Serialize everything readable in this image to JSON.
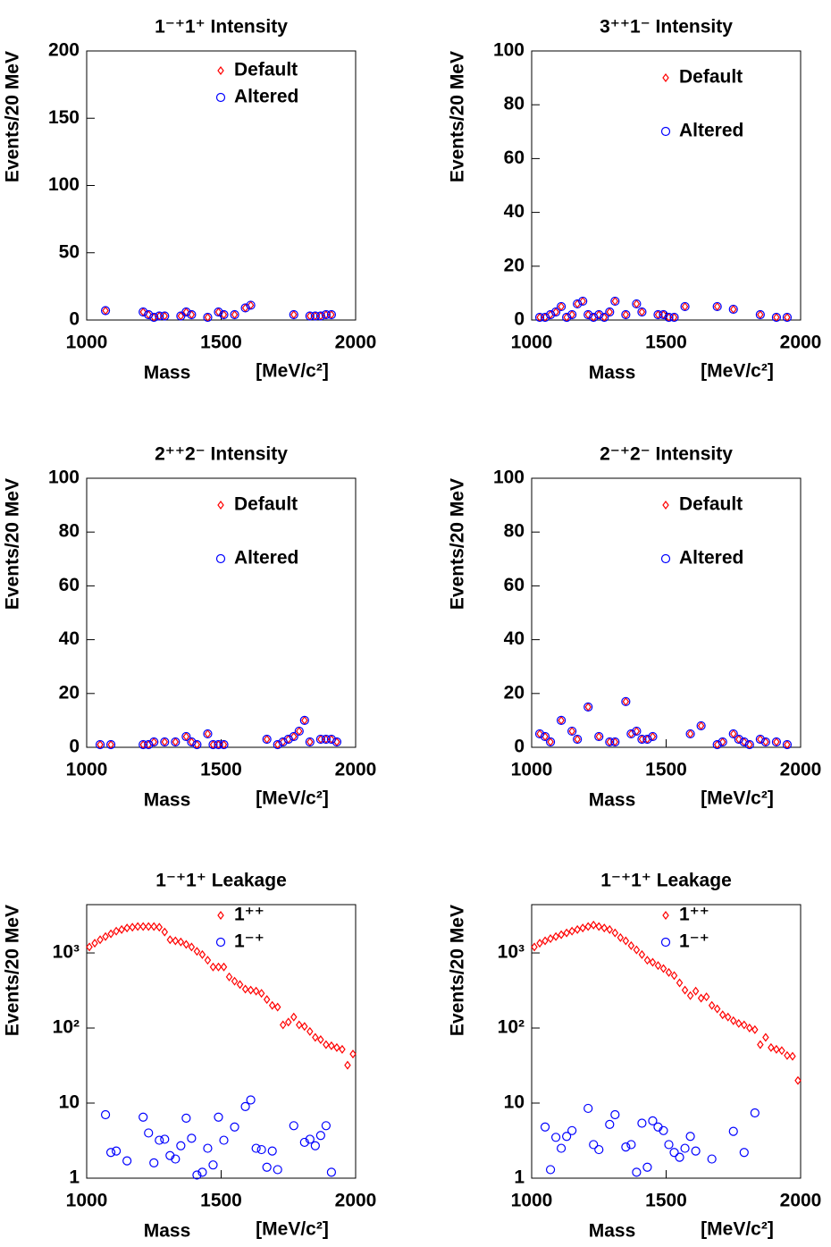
{
  "chart_data": [
    {
      "type": "scatter",
      "title": "1⁻⁺1⁺ Intensity",
      "x_label": "Mass",
      "x_unit": "[MeV/c²]",
      "y_label": "Events/20 MeV",
      "xlim": [
        1000,
        2000
      ],
      "xticks": [
        1000,
        1500,
        2000
      ],
      "ylim": [
        0,
        200
      ],
      "yticks": [
        0,
        50,
        100,
        150,
        200
      ],
      "log_y": false,
      "series": [
        {
          "name": "Default",
          "color": "#ff0000",
          "marker": "diamond",
          "x": [
            1070,
            1210,
            1230,
            1250,
            1270,
            1290,
            1350,
            1370,
            1390,
            1450,
            1490,
            1510,
            1550,
            1590,
            1610,
            1770,
            1830,
            1850,
            1870,
            1890,
            1910
          ],
          "values": [
            7,
            6,
            4,
            2,
            3,
            3,
            3,
            6,
            4,
            2,
            6,
            4,
            4,
            9,
            11,
            4,
            3,
            3,
            3,
            4,
            4
          ]
        },
        {
          "name": "Altered",
          "color": "#0000ff",
          "marker": "circle",
          "x": [
            1070,
            1210,
            1230,
            1250,
            1270,
            1290,
            1350,
            1370,
            1390,
            1450,
            1490,
            1510,
            1550,
            1590,
            1610,
            1770,
            1830,
            1850,
            1870,
            1890,
            1910
          ],
          "values": [
            7,
            6,
            4,
            2,
            3,
            3,
            3,
            6,
            4,
            2,
            6,
            4,
            4,
            9,
            11,
            4,
            3,
            3,
            3,
            4,
            4
          ]
        }
      ]
    },
    {
      "type": "scatter",
      "title": "3⁺⁺1⁻ Intensity",
      "x_label": "Mass",
      "x_unit": "[MeV/c²]",
      "y_label": "Events/20 MeV",
      "xlim": [
        1000,
        2000
      ],
      "xticks": [
        1000,
        1500,
        2000
      ],
      "ylim": [
        0,
        100
      ],
      "yticks": [
        0,
        20,
        40,
        60,
        80,
        100
      ],
      "log_y": false,
      "series": [
        {
          "name": "Default",
          "color": "#ff0000",
          "marker": "diamond",
          "x": [
            1030,
            1050,
            1070,
            1090,
            1110,
            1130,
            1150,
            1170,
            1190,
            1210,
            1230,
            1250,
            1270,
            1290,
            1310,
            1350,
            1390,
            1410,
            1470,
            1490,
            1510,
            1530,
            1570,
            1690,
            1750,
            1850,
            1910,
            1950
          ],
          "values": [
            1,
            1,
            2,
            3,
            5,
            1,
            2,
            6,
            7,
            2,
            1,
            2,
            1,
            3,
            7,
            2,
            6,
            3,
            2,
            2,
            1,
            1,
            5,
            5,
            4,
            2,
            1,
            1
          ]
        },
        {
          "name": "Altered",
          "color": "#0000ff",
          "marker": "circle",
          "x": [
            1030,
            1050,
            1070,
            1090,
            1110,
            1130,
            1150,
            1170,
            1190,
            1210,
            1230,
            1250,
            1270,
            1290,
            1310,
            1350,
            1390,
            1410,
            1470,
            1490,
            1510,
            1530,
            1570,
            1690,
            1750,
            1850,
            1910,
            1950
          ],
          "values": [
            1,
            1,
            2,
            3,
            5,
            1,
            2,
            6,
            7,
            2,
            1,
            2,
            1,
            3,
            7,
            2,
            6,
            3,
            2,
            2,
            1,
            1,
            5,
            5,
            4,
            2,
            1,
            1
          ]
        }
      ]
    },
    {
      "type": "scatter",
      "title": "2⁺⁺2⁻ Intensity",
      "x_label": "Mass",
      "x_unit": "[MeV/c²]",
      "y_label": "Events/20 MeV",
      "xlim": [
        1000,
        2000
      ],
      "xticks": [
        1000,
        1500,
        2000
      ],
      "ylim": [
        0,
        100
      ],
      "yticks": [
        0,
        20,
        40,
        60,
        80,
        100
      ],
      "log_y": false,
      "series": [
        {
          "name": "Default",
          "color": "#ff0000",
          "marker": "diamond",
          "x": [
            1050,
            1090,
            1210,
            1230,
            1250,
            1290,
            1330,
            1370,
            1390,
            1410,
            1450,
            1470,
            1490,
            1510,
            1670,
            1710,
            1730,
            1750,
            1770,
            1790,
            1810,
            1830,
            1870,
            1890,
            1910,
            1930
          ],
          "values": [
            1,
            1,
            1,
            1,
            2,
            2,
            2,
            4,
            2,
            1,
            5,
            1,
            1,
            1,
            3,
            1,
            2,
            3,
            4,
            6,
            10,
            2,
            3,
            3,
            3,
            2
          ]
        },
        {
          "name": "Altered",
          "color": "#0000ff",
          "marker": "circle",
          "x": [
            1050,
            1090,
            1210,
            1230,
            1250,
            1290,
            1330,
            1370,
            1390,
            1410,
            1450,
            1470,
            1490,
            1510,
            1670,
            1710,
            1730,
            1750,
            1770,
            1790,
            1810,
            1830,
            1870,
            1890,
            1910,
            1930
          ],
          "values": [
            1,
            1,
            1,
            1,
            2,
            2,
            2,
            4,
            2,
            1,
            5,
            1,
            1,
            1,
            3,
            1,
            2,
            3,
            4,
            6,
            10,
            2,
            3,
            3,
            3,
            2
          ]
        }
      ]
    },
    {
      "type": "scatter",
      "title": "2⁻⁺2⁻ Intensity",
      "x_label": "Mass",
      "x_unit": "[MeV/c²]",
      "y_label": "Events/20 MeV",
      "xlim": [
        1000,
        2000
      ],
      "xticks": [
        1000,
        1500,
        2000
      ],
      "ylim": [
        0,
        100
      ],
      "yticks": [
        0,
        20,
        40,
        60,
        80,
        100
      ],
      "log_y": false,
      "series": [
        {
          "name": "Default",
          "color": "#ff0000",
          "marker": "diamond",
          "x": [
            1030,
            1050,
            1070,
            1110,
            1150,
            1170,
            1210,
            1250,
            1290,
            1310,
            1350,
            1370,
            1390,
            1410,
            1430,
            1450,
            1590,
            1630,
            1690,
            1710,
            1750,
            1770,
            1790,
            1810,
            1850,
            1870,
            1910,
            1950
          ],
          "values": [
            5,
            4,
            2,
            10,
            6,
            3,
            15,
            4,
            2,
            2,
            17,
            5,
            6,
            3,
            3,
            4,
            5,
            8,
            1,
            2,
            5,
            3,
            2,
            1,
            3,
            2,
            2,
            1
          ]
        },
        {
          "name": "Altered",
          "color": "#0000ff",
          "marker": "circle",
          "x": [
            1030,
            1050,
            1070,
            1110,
            1150,
            1170,
            1210,
            1250,
            1290,
            1310,
            1350,
            1370,
            1390,
            1410,
            1430,
            1450,
            1590,
            1630,
            1690,
            1710,
            1750,
            1770,
            1790,
            1810,
            1850,
            1870,
            1910,
            1950
          ],
          "values": [
            5,
            4,
            2,
            10,
            6,
            3,
            15,
            4,
            2,
            2,
            17,
            5,
            6,
            3,
            3,
            4,
            5,
            8,
            1,
            2,
            5,
            3,
            2,
            1,
            3,
            2,
            2,
            1
          ]
        }
      ]
    },
    {
      "type": "scatter",
      "title": "1⁻⁺1⁺ Leakage",
      "x_label": "Mass",
      "x_unit": "[MeV/c²]",
      "y_label": "Events/20 MeV",
      "xlim": [
        1000,
        2000
      ],
      "xticks": [
        1000,
        1500,
        2000
      ],
      "ylim": [
        1,
        4400
      ],
      "yticks": [
        1,
        10,
        {
          "value": 100,
          "label": "10²"
        },
        {
          "value": 1000,
          "label": "10³"
        }
      ],
      "log_y": true,
      "series": [
        {
          "name": "1⁺⁺",
          "color": "#ff0000",
          "marker": "diamond",
          "x": [
            1010,
            1030,
            1050,
            1070,
            1090,
            1110,
            1130,
            1150,
            1170,
            1190,
            1210,
            1230,
            1250,
            1270,
            1290,
            1310,
            1330,
            1350,
            1370,
            1390,
            1410,
            1430,
            1450,
            1470,
            1490,
            1510,
            1530,
            1550,
            1570,
            1590,
            1610,
            1630,
            1650,
            1670,
            1690,
            1710,
            1730,
            1750,
            1770,
            1790,
            1810,
            1830,
            1850,
            1870,
            1890,
            1910,
            1930,
            1950,
            1970,
            1990
          ],
          "values": [
            1200,
            1350,
            1500,
            1650,
            1800,
            1950,
            2050,
            2150,
            2200,
            2250,
            2250,
            2250,
            2250,
            2200,
            1900,
            1500,
            1450,
            1400,
            1300,
            1200,
            1050,
            950,
            800,
            650,
            650,
            650,
            480,
            420,
            380,
            330,
            320,
            310,
            290,
            240,
            200,
            190,
            110,
            120,
            140,
            110,
            105,
            90,
            75,
            70,
            60,
            58,
            55,
            52,
            32,
            45
          ]
        },
        {
          "name": "1⁻⁺",
          "color": "#0000ff",
          "marker": "circle",
          "x": [
            1070,
            1090,
            1110,
            1150,
            1210,
            1230,
            1250,
            1270,
            1290,
            1310,
            1330,
            1350,
            1370,
            1390,
            1410,
            1430,
            1450,
            1470,
            1490,
            1510,
            1550,
            1590,
            1610,
            1630,
            1650,
            1670,
            1690,
            1710,
            1770,
            1810,
            1830,
            1850,
            1870,
            1890,
            1910
          ],
          "values": [
            7,
            2.2,
            2.3,
            1.7,
            6.5,
            4,
            1.6,
            3.2,
            3.3,
            2,
            1.8,
            2.7,
            6.3,
            3.4,
            1.1,
            1.2,
            2.5,
            1.5,
            6.5,
            3.2,
            4.8,
            9,
            11,
            2.5,
            2.4,
            1.4,
            2.3,
            1.3,
            5,
            3,
            3.3,
            2.7,
            3.7,
            5,
            1.2
          ]
        }
      ]
    },
    {
      "type": "scatter",
      "title": "1⁻⁺1⁺ Leakage",
      "x_label": "Mass",
      "x_unit": "[MeV/c²]",
      "y_label": "Events/20 MeV",
      "xlim": [
        1000,
        2000
      ],
      "xticks": [
        1000,
        1500,
        2000
      ],
      "ylim": [
        1,
        4400
      ],
      "yticks": [
        1,
        10,
        {
          "value": 100,
          "label": "10²"
        },
        {
          "value": 1000,
          "label": "10³"
        }
      ],
      "log_y": true,
      "series": [
        {
          "name": "1⁺⁺",
          "color": "#ff0000",
          "marker": "diamond",
          "x": [
            1010,
            1030,
            1050,
            1070,
            1090,
            1110,
            1130,
            1150,
            1170,
            1190,
            1210,
            1230,
            1250,
            1270,
            1290,
            1310,
            1330,
            1350,
            1370,
            1390,
            1410,
            1430,
            1450,
            1470,
            1490,
            1510,
            1530,
            1550,
            1570,
            1590,
            1610,
            1630,
            1650,
            1670,
            1690,
            1710,
            1730,
            1750,
            1770,
            1790,
            1810,
            1830,
            1850,
            1870,
            1890,
            1910,
            1930,
            1950,
            1970,
            1990
          ],
          "values": [
            1200,
            1350,
            1450,
            1550,
            1650,
            1750,
            1850,
            1950,
            2050,
            2150,
            2250,
            2350,
            2250,
            2150,
            2050,
            1850,
            1600,
            1450,
            1250,
            1100,
            950,
            800,
            750,
            680,
            620,
            550,
            500,
            400,
            320,
            270,
            310,
            250,
            260,
            200,
            180,
            150,
            140,
            125,
            115,
            110,
            100,
            95,
            60,
            75,
            55,
            52,
            50,
            43,
            42,
            20
          ]
        },
        {
          "name": "1⁻⁺",
          "color": "#0000ff",
          "marker": "circle",
          "x": [
            1050,
            1070,
            1090,
            1110,
            1130,
            1150,
            1210,
            1230,
            1250,
            1290,
            1310,
            1350,
            1370,
            1390,
            1410,
            1430,
            1450,
            1470,
            1490,
            1510,
            1530,
            1550,
            1570,
            1590,
            1610,
            1670,
            1750,
            1790,
            1830
          ],
          "values": [
            4.8,
            1.3,
            3.5,
            2.5,
            3.6,
            4.3,
            8.5,
            2.8,
            2.4,
            5.2,
            7,
            2.6,
            2.8,
            1.2,
            5.4,
            1.4,
            5.8,
            4.8,
            4.3,
            2.8,
            2.2,
            1.9,
            2.5,
            3.6,
            2.3,
            1.8,
            4.2,
            2.2,
            7.4
          ]
        }
      ]
    }
  ]
}
